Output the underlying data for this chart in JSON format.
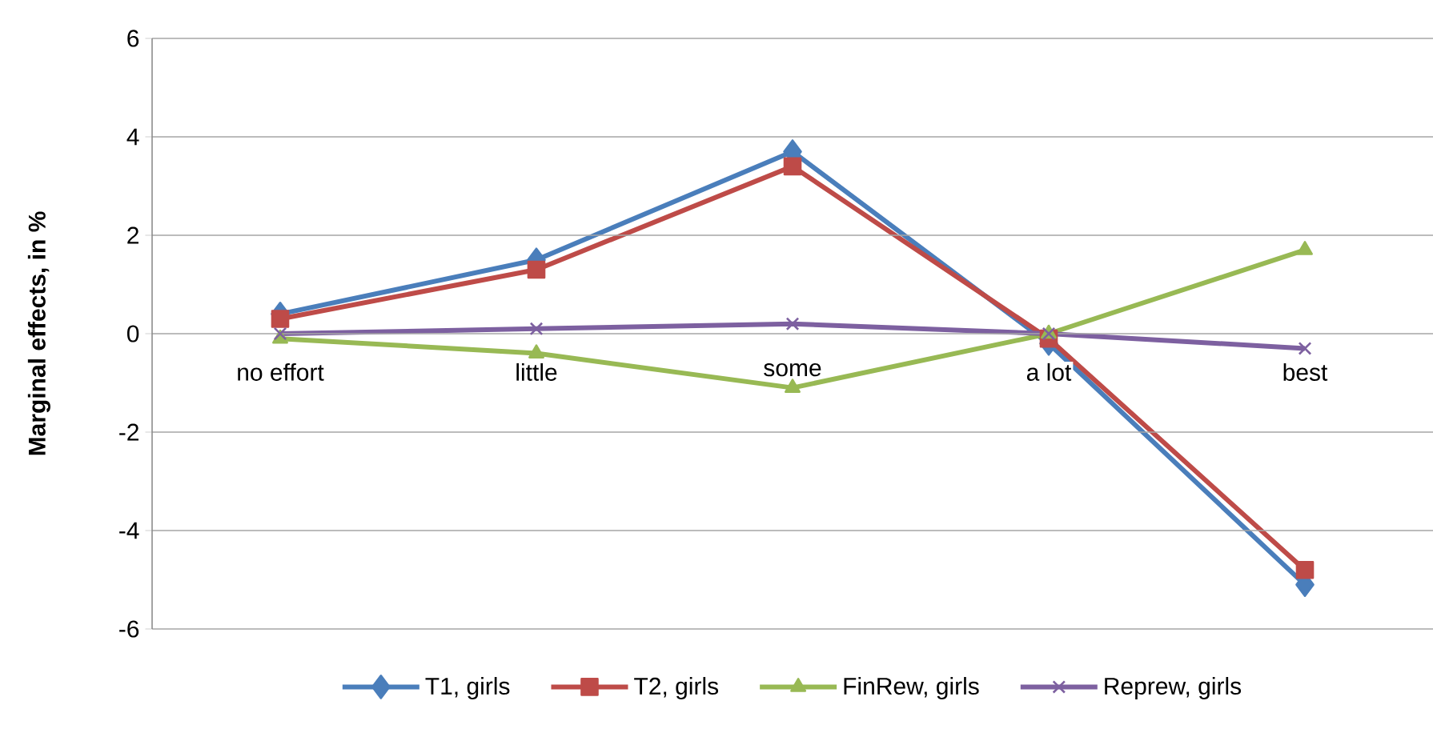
{
  "chart_data": {
    "type": "line",
    "ylabel": "Marginal effects, in %",
    "categories": [
      "no effort",
      "little",
      "some",
      "a lot",
      "best"
    ],
    "ylim": [
      -6,
      6
    ],
    "yticks": [
      -6,
      -4,
      -2,
      0,
      2,
      4,
      6
    ],
    "grid": "y",
    "legend": "bottom",
    "line_style": "solid",
    "series": [
      {
        "name": "T1, girls",
        "color": "#4a7ebb",
        "marker": "diamond",
        "values": [
          0.4,
          1.5,
          3.7,
          -0.2,
          -5.1
        ]
      },
      {
        "name": "T2, girls",
        "color": "#be4b48",
        "marker": "square",
        "values": [
          0.3,
          1.3,
          3.4,
          -0.1,
          -4.8
        ]
      },
      {
        "name": "FinRew, girls",
        "color": "#98b954",
        "marker": "triangle",
        "values": [
          -0.1,
          -0.4,
          -1.1,
          0.0,
          1.7
        ]
      },
      {
        "name": "Reprew, girls",
        "color": "#7d60a0",
        "marker": "cross",
        "values": [
          0.0,
          0.1,
          0.2,
          0.0,
          -0.3
        ]
      }
    ]
  }
}
